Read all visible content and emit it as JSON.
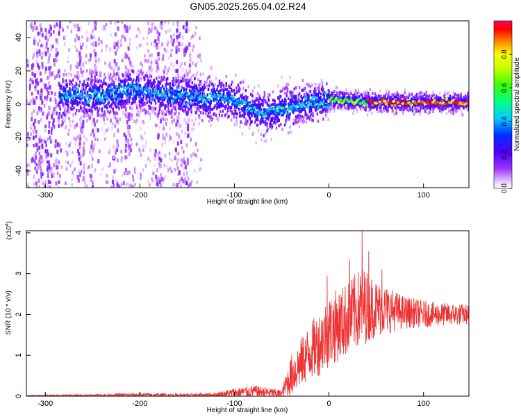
{
  "page": {
    "title": "GN05.2025.265.04.02.R24"
  },
  "chart_data": [
    {
      "type": "heatmap",
      "title": "GN05.2025.265.04.02.R24",
      "xlabel": "Height of straight line (km)",
      "ylabel": "Frequency (Hz)",
      "xlim": [
        -320,
        148
      ],
      "ylim": [
        -50,
        50
      ],
      "xticks": [
        -300,
        -200,
        -100,
        0,
        100
      ],
      "yticks": [
        -40,
        -20,
        0,
        20,
        40
      ],
      "colorbar": {
        "label": "Normalized spectral amplitude",
        "range": [
          0,
          1
        ],
        "ticks": [
          0,
          0.2,
          0.4,
          0.6,
          0.8
        ]
      },
      "ridge": {
        "description_points": [
          {
            "x": -280,
            "y": 5
          },
          {
            "x": -230,
            "y": 5
          },
          {
            "x": -210,
            "y": 9
          },
          {
            "x": -170,
            "y": 6
          },
          {
            "x": -130,
            "y": 3
          },
          {
            "x": -110,
            "y": 4
          },
          {
            "x": -90,
            "y": 0
          },
          {
            "x": -70,
            "y": -6
          },
          {
            "x": -50,
            "y": -3
          },
          {
            "x": -30,
            "y": 0
          },
          {
            "x": 0,
            "y": 3
          },
          {
            "x": 50,
            "y": 1
          },
          {
            "x": 100,
            "y": 1
          },
          {
            "x": 148,
            "y": 1
          }
        ]
      }
    },
    {
      "type": "line",
      "xlabel": "Height of straight line (km)",
      "ylabel": "SNR (10 * v/v)",
      "yunit": "(x10^4)",
      "yunit_base": "(x10",
      "yunit_exp": "4",
      "yunit_close": ")",
      "xlim": [
        -320,
        148
      ],
      "ylim": [
        0,
        4.05
      ],
      "xticks": [
        -300,
        -200,
        -100,
        0,
        100
      ],
      "yticks": [
        0,
        1,
        2,
        3,
        4
      ],
      "color": "#ee3333",
      "envelope": [
        {
          "x": -320,
          "mean": 0.01,
          "amp": 0.01
        },
        {
          "x": -250,
          "mean": 0.02,
          "amp": 0.03
        },
        {
          "x": -200,
          "mean": 0.03,
          "amp": 0.05
        },
        {
          "x": -150,
          "mean": 0.02,
          "amp": 0.04
        },
        {
          "x": -120,
          "mean": 0.03,
          "amp": 0.06
        },
        {
          "x": -100,
          "mean": 0.08,
          "amp": 0.12
        },
        {
          "x": -80,
          "mean": 0.12,
          "amp": 0.15
        },
        {
          "x": -60,
          "mean": 0.08,
          "amp": 0.12
        },
        {
          "x": -50,
          "mean": 0.05,
          "amp": 0.1
        },
        {
          "x": -45,
          "mean": 0.3,
          "amp": 0.3
        },
        {
          "x": -40,
          "mean": 0.5,
          "amp": 0.5
        },
        {
          "x": -30,
          "mean": 0.8,
          "amp": 0.6
        },
        {
          "x": -20,
          "mean": 1.1,
          "amp": 0.7
        },
        {
          "x": -10,
          "mean": 1.3,
          "amp": 0.8
        },
        {
          "x": 0,
          "mean": 1.6,
          "amp": 0.9
        },
        {
          "x": 20,
          "mean": 1.9,
          "amp": 0.9
        },
        {
          "x": 35,
          "mean": 2.2,
          "amp": 1.0
        },
        {
          "x": 50,
          "mean": 2.15,
          "amp": 0.7
        },
        {
          "x": 80,
          "mean": 2.05,
          "amp": 0.4
        },
        {
          "x": 110,
          "mean": 2.0,
          "amp": 0.3
        },
        {
          "x": 148,
          "mean": 2.0,
          "amp": 0.25
        }
      ],
      "peaks": [
        {
          "x": 35,
          "y": 4.05
        },
        {
          "x": 22,
          "y": 3.35
        },
        {
          "x": 42,
          "y": 3.55
        },
        {
          "x": -2,
          "y": 2.95
        },
        {
          "x": 56,
          "y": 3.1
        }
      ]
    }
  ]
}
